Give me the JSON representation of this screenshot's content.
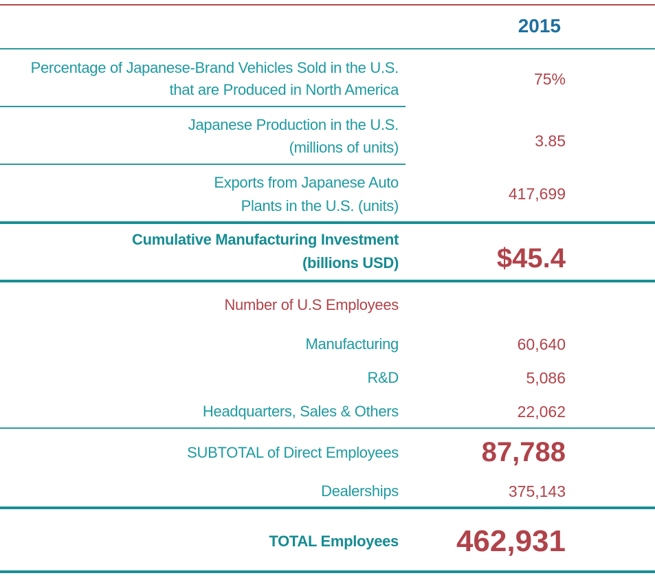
{
  "header": {
    "year": "2015"
  },
  "rows": {
    "pct_japanese": {
      "label_line1": "Percentage of Japanese-Brand Vehicles Sold in the U.S.",
      "label_line2": "that are Produced in North America",
      "value": "75%"
    },
    "production": {
      "label_line1": "Japanese Production in the U.S.",
      "label_line2": "(millions of units)",
      "value": "3.85"
    },
    "exports": {
      "label_line1": "Exports from Japanese Auto",
      "label_line2": "Plants in the U.S. (units)",
      "value": "417,699"
    },
    "investment": {
      "label_line1": "Cumulative Manufacturing Investment",
      "label_line2": "(billions USD)",
      "value": "$45.4"
    }
  },
  "employees": {
    "heading": "Number of U.S Employees",
    "manufacturing": {
      "label": "Manufacturing",
      "value": "60,640"
    },
    "rnd": {
      "label": "R&D",
      "value": "5,086"
    },
    "hq": {
      "label": "Headquarters, Sales & Others",
      "value": "22,062"
    },
    "subtotal": {
      "label": "SUBTOTAL of Direct Employees",
      "value": "87,788"
    },
    "dealerships": {
      "label": "Dealerships",
      "value": "375,143"
    },
    "total": {
      "label": "TOTAL Employees",
      "value": "462,931"
    }
  },
  "colors": {
    "teal": "#1e9aa0",
    "dark_teal": "#158c92",
    "red": "#b0434a",
    "blue": "#1f6f9e"
  }
}
